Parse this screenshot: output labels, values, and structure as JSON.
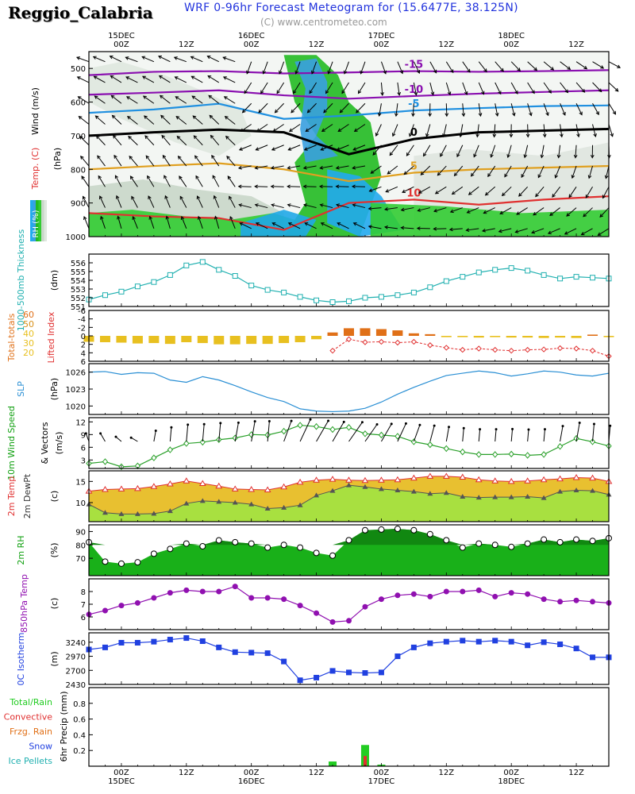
{
  "header": {
    "station": "Reggio_Calabria",
    "title": "WRF 0-96hr Forecast Meteogram for (15.6477E, 38.125N)",
    "credit": "(C) www.centrometeo.com"
  },
  "time_axis": {
    "top_labels": [
      {
        "t": 0,
        "lines": [
          "15DEC",
          "00Z"
        ]
      },
      {
        "t": 12,
        "lines": [
          "12Z"
        ]
      },
      {
        "t": 24,
        "lines": [
          "16DEC",
          "00Z"
        ]
      },
      {
        "t": 36,
        "lines": [
          "12Z"
        ]
      },
      {
        "t": 48,
        "lines": [
          "17DEC",
          "00Z"
        ]
      },
      {
        "t": 60,
        "lines": [
          "12Z"
        ]
      },
      {
        "t": 72,
        "lines": [
          "18DEC",
          "00Z"
        ]
      },
      {
        "t": 84,
        "lines": [
          "12Z"
        ]
      }
    ],
    "bottom_labels": [
      {
        "t": 0,
        "lines": [
          "00Z",
          "15DEC"
        ]
      },
      {
        "t": 12,
        "lines": [
          "12Z"
        ]
      },
      {
        "t": 24,
        "lines": [
          "00Z",
          "16DEC"
        ]
      },
      {
        "t": 36,
        "lines": [
          "12Z"
        ]
      },
      {
        "t": 48,
        "lines": [
          "00Z",
          "17DEC"
        ]
      },
      {
        "t": 60,
        "lines": [
          "12Z"
        ]
      },
      {
        "t": 72,
        "lines": [
          "00Z",
          "18DEC"
        ]
      },
      {
        "t": 84,
        "lines": [
          "12Z"
        ]
      }
    ]
  },
  "colors": {
    "cyan": "#20b0b0",
    "blue_line": "#2a8fd4",
    "gold": "#e8c020",
    "orange": "#e07018",
    "red": "#e03030",
    "green_dark": "#10a010",
    "green": "#22cc22",
    "purple": "#9010b0",
    "blue_sq": "#2040e0",
    "magenta": "#8010a0"
  },
  "chart_data": [
    {
      "id": "upper",
      "type": "heatmap",
      "labels": {
        "wind": "Wind (m/s)",
        "press": "(hPa)",
        "temp": "Temp. (C)",
        "rh": "RH (%)"
      },
      "ylim": [
        1000,
        450
      ],
      "yticks": [
        500,
        600,
        700,
        800,
        900,
        1000
      ],
      "isotherms": [
        {
          "label": "-15",
          "color": "#8a10b0",
          "t": [
            0,
            12,
            24,
            36,
            48,
            60,
            72,
            84,
            96
          ],
          "p": [
            520,
            510,
            508,
            515,
            512,
            508,
            510,
            508,
            505
          ]
        },
        {
          "label": "-10",
          "color": "#8a10b0",
          "t": [
            0,
            12,
            24,
            36,
            48,
            60,
            72,
            84,
            96
          ],
          "p": [
            578,
            572,
            565,
            580,
            590,
            582,
            575,
            570,
            565
          ]
        },
        {
          "label": "-5",
          "color": "#2090e0",
          "t": [
            0,
            12,
            24,
            36,
            48,
            60,
            72,
            84,
            96
          ],
          "p": [
            632,
            622,
            605,
            650,
            640,
            625,
            618,
            612,
            610
          ]
        },
        {
          "label": "0",
          "color": "#000000",
          "t": [
            0,
            12,
            24,
            36,
            48,
            60,
            72,
            84,
            96
          ],
          "p": [
            700,
            690,
            682,
            690,
            755,
            710,
            690,
            685,
            680
          ]
        },
        {
          "label": "5",
          "color": "#e0a020",
          "t": [
            0,
            12,
            24,
            36,
            48,
            60,
            72,
            84,
            96
          ],
          "p": [
            800,
            790,
            782,
            800,
            835,
            810,
            800,
            795,
            790
          ]
        },
        {
          "label": "10",
          "color": "#e03030",
          "t": [
            0,
            12,
            24,
            36,
            48,
            60,
            72,
            84,
            96
          ],
          "p": [
            930,
            940,
            945,
            980,
            900,
            890,
            905,
            890,
            880
          ]
        }
      ]
    },
    {
      "id": "thickness",
      "type": "line",
      "ylabel": "1000-500mb Thickness",
      "unit": "(dm)",
      "ylim": [
        551,
        557
      ],
      "yticks": [
        551,
        552,
        553,
        554,
        555,
        556
      ],
      "x": [
        0,
        3,
        6,
        9,
        12,
        15,
        18,
        21,
        24,
        27,
        30,
        33,
        36,
        39,
        42,
        45,
        48,
        51,
        54,
        57,
        60,
        63,
        66,
        69,
        72,
        75,
        78,
        81,
        84,
        87,
        90,
        93,
        96
      ],
      "values": [
        551.8,
        552.3,
        552.7,
        553.3,
        553.8,
        554.6,
        555.7,
        556.1,
        555.2,
        554.5,
        553.4,
        552.9,
        552.6,
        552.1,
        551.7,
        551.5,
        551.6,
        552.0,
        552.1,
        552.3,
        552.6,
        553.2,
        553.9,
        554.4,
        554.9,
        555.2,
        555.4,
        555.1,
        554.6,
        554.2,
        554.4,
        554.3,
        554.2
      ],
      "color": "#20b0b0"
    },
    {
      "id": "stability",
      "type": "bar",
      "ylabel": "Lifted Index",
      "legend": [
        "Total-totals",
        "60",
        "50",
        "40",
        "30",
        "20"
      ],
      "legend_colors": [
        "#e07018",
        "#e07018",
        "#d89018",
        "#e8c020",
        "#e8c020",
        "#e8c020"
      ],
      "ylim": [
        -6,
        6
      ],
      "yticks": [
        -6,
        -4,
        -2,
        0,
        2,
        4,
        6
      ],
      "x": [
        0,
        3,
        6,
        9,
        12,
        15,
        18,
        21,
        24,
        27,
        30,
        33,
        36,
        39,
        42,
        45,
        48,
        51,
        54,
        57,
        60,
        63,
        66,
        69,
        72,
        75,
        78,
        81,
        84,
        87,
        90,
        93,
        96
      ],
      "lifted_index": [
        1.4,
        1.5,
        1.6,
        1.8,
        1.7,
        1.9,
        1.5,
        1.7,
        2.0,
        2.0,
        1.9,
        1.9,
        1.7,
        1.5,
        0.8,
        -0.8,
        -1.8,
        -1.8,
        -1.6,
        -1.3,
        -0.6,
        -0.4,
        0.3,
        0.3,
        0.4,
        0.3,
        0.4,
        0.4,
        0.5,
        0.4,
        0.5,
        -0.3,
        0.3
      ],
      "li_line": [
        null,
        null,
        null,
        null,
        null,
        null,
        null,
        null,
        null,
        null,
        null,
        null,
        null,
        null,
        null,
        3.5,
        0.8,
        1.5,
        1.4,
        1.6,
        1.4,
        2.2,
        2.8,
        3.3,
        3.0,
        3.3,
        3.5,
        3.3,
        3.2,
        2.9,
        3.0,
        3.5,
        4.8
      ],
      "colors": {
        "bar_pos": "#e8c020",
        "bar_neg": "#e07018",
        "line": "#e03030"
      }
    },
    {
      "id": "slp",
      "type": "line",
      "ylabel": "SLP",
      "unit": "(hPa)",
      "ylim": [
        1018.5,
        1027.5
      ],
      "yticks": [
        1020,
        1023,
        1026
      ],
      "x": [
        0,
        3,
        6,
        9,
        12,
        15,
        18,
        21,
        24,
        27,
        30,
        33,
        36,
        39,
        42,
        45,
        48,
        51,
        54,
        57,
        60,
        63,
        66,
        69,
        72,
        75,
        78,
        81,
        84,
        87,
        90,
        93,
        96
      ],
      "values": [
        1026.0,
        1026.1,
        1025.6,
        1025.9,
        1025.8,
        1024.6,
        1024.2,
        1025.2,
        1024.6,
        1023.6,
        1022.5,
        1021.5,
        1020.8,
        1019.5,
        1019.1,
        1019.0,
        1019.1,
        1019.6,
        1020.7,
        1022.1,
        1023.3,
        1024.4,
        1025.4,
        1025.8,
        1026.2,
        1025.9,
        1025.3,
        1025.7,
        1026.2,
        1026.0,
        1025.5,
        1025.3,
        1025.8
      ],
      "color": "#2a8fd4"
    },
    {
      "id": "wind10",
      "type": "line",
      "ylabel": "10m Wind Speed",
      "ylabel2": "& Vectors",
      "unit": "(m/s)",
      "ylim": [
        1,
        13
      ],
      "yticks": [
        3,
        6,
        9,
        12
      ],
      "x": [
        0,
        3,
        6,
        9,
        12,
        15,
        18,
        21,
        24,
        27,
        30,
        33,
        36,
        39,
        42,
        45,
        48,
        51,
        54,
        57,
        60,
        63,
        66,
        69,
        72,
        75,
        78,
        81,
        84,
        87,
        90,
        93,
        96
      ],
      "values": [
        2.2,
        2.6,
        1.4,
        1.6,
        3.5,
        5.4,
        6.9,
        7.2,
        7.8,
        8.2,
        9.0,
        8.9,
        9.8,
        11.2,
        10.9,
        10.2,
        10.7,
        9.2,
        8.9,
        8.6,
        7.3,
        6.6,
        5.7,
        4.9,
        4.3,
        4.3,
        4.4,
        4.1,
        4.3,
        6.2,
        8.1,
        7.3,
        6.3
      ],
      "dirs": [
        200,
        210,
        230,
        240,
        170,
        175,
        175,
        175,
        175,
        170,
        170,
        175,
        160,
        155,
        150,
        150,
        145,
        145,
        150,
        155,
        160,
        165,
        170,
        175,
        175,
        175,
        175,
        175,
        175,
        170,
        170,
        175,
        175
      ],
      "color": "#2aa02a"
    },
    {
      "id": "temp2m",
      "type": "area",
      "ylabel": "2m Temp",
      "ylabel2": "2m DewPt",
      "unit": "(c)",
      "ylim": [
        5.5,
        17.5
      ],
      "yticks": [
        10,
        15
      ],
      "x": [
        0,
        3,
        6,
        9,
        12,
        15,
        18,
        21,
        24,
        27,
        30,
        33,
        36,
        39,
        42,
        45,
        48,
        51,
        54,
        57,
        60,
        63,
        66,
        69,
        72,
        75,
        78,
        81,
        84,
        87,
        90,
        93,
        96
      ],
      "series": [
        {
          "name": "2m Temp",
          "values": [
            12.7,
            13.1,
            13.2,
            13.3,
            13.8,
            14.4,
            15.1,
            14.5,
            13.9,
            13.2,
            13.1,
            13.0,
            13.7,
            14.8,
            15.3,
            15.5,
            15.3,
            15.2,
            15.3,
            15.4,
            15.8,
            16.2,
            16.2,
            16.0,
            15.4,
            15.1,
            15.0,
            15.1,
            15.4,
            15.6,
            15.9,
            15.8,
            15.0
          ],
          "color": "#e03030"
        },
        {
          "name": "2m DewPt",
          "values": [
            9.6,
            7.6,
            7.3,
            7.3,
            7.4,
            8.0,
            9.8,
            10.4,
            10.2,
            10.0,
            9.6,
            8.6,
            8.8,
            9.4,
            11.7,
            12.8,
            14.1,
            13.7,
            13.2,
            12.9,
            12.6,
            12.1,
            12.3,
            11.4,
            11.2,
            11.3,
            11.3,
            11.4,
            11.1,
            12.6,
            12.9,
            12.8,
            11.9
          ],
          "color": "#555555"
        }
      ]
    },
    {
      "id": "rh2m",
      "type": "area",
      "ylabel": "2m RH",
      "unit": "(%)",
      "ylim": [
        57,
        95
      ],
      "yticks": [
        70,
        80,
        90
      ],
      "x": [
        0,
        3,
        6,
        9,
        12,
        15,
        18,
        21,
        24,
        27,
        30,
        33,
        36,
        39,
        42,
        45,
        48,
        51,
        54,
        57,
        60,
        63,
        66,
        69,
        72,
        75,
        78,
        81,
        84,
        87,
        90,
        93,
        96
      ],
      "values": [
        82.0,
        67.5,
        66.0,
        67.0,
        73.4,
        77.0,
        81.0,
        79.0,
        83.4,
        82.0,
        81.0,
        78.0,
        80.0,
        78.0,
        74.0,
        72.0,
        83.5,
        91.0,
        91.5,
        92.0,
        91.0,
        88.0,
        83.5,
        78.0,
        81.0,
        80.0,
        78.5,
        81.0,
        84.0,
        82.0,
        84.0,
        83.0,
        85.0
      ],
      "color": "#10a010"
    },
    {
      "id": "t850",
      "type": "line",
      "ylabel": "850hPa Temp",
      "unit": "(c)",
      "ylim": [
        5,
        9
      ],
      "yticks": [
        6,
        7,
        8
      ],
      "x": [
        0,
        3,
        6,
        9,
        12,
        15,
        18,
        21,
        24,
        27,
        30,
        33,
        36,
        39,
        42,
        45,
        48,
        51,
        54,
        57,
        60,
        63,
        66,
        69,
        72,
        75,
        78,
        81,
        84,
        87,
        90,
        93,
        96
      ],
      "values": [
        6.2,
        6.5,
        6.9,
        7.1,
        7.5,
        7.9,
        8.1,
        8.0,
        8.0,
        8.4,
        7.5,
        7.5,
        7.4,
        6.9,
        6.3,
        5.6,
        5.7,
        6.8,
        7.4,
        7.7,
        7.8,
        7.6,
        8.0,
        8.0,
        8.1,
        7.6,
        7.9,
        7.8,
        7.4,
        7.2,
        7.3,
        7.2,
        7.1
      ],
      "color": "#9010b0"
    },
    {
      "id": "iso0",
      "type": "line",
      "ylabel": "0C Isotherm",
      "unit": "(m)",
      "ylim": [
        2430,
        3420
      ],
      "yticks": [
        2430,
        2700,
        2970,
        3240
      ],
      "x": [
        0,
        3,
        6,
        9,
        12,
        15,
        18,
        21,
        24,
        27,
        30,
        33,
        36,
        39,
        42,
        45,
        48,
        51,
        54,
        57,
        60,
        63,
        66,
        69,
        72,
        75,
        78,
        81,
        84,
        87,
        90,
        93,
        96
      ],
      "values": [
        3100,
        3140,
        3230,
        3230,
        3250,
        3290,
        3320,
        3260,
        3140,
        3050,
        3040,
        3030,
        2870,
        2510,
        2560,
        2690,
        2660,
        2650,
        2660,
        2970,
        3140,
        3220,
        3250,
        3270,
        3250,
        3270,
        3250,
        3180,
        3240,
        3200,
        3120,
        2950,
        2950
      ],
      "color": "#2040e0"
    },
    {
      "id": "precip",
      "type": "bar",
      "ylabel": "6hr Precip (mm)",
      "legend": [
        "Total/Rain",
        "Convective",
        "Frzg. Rain",
        "Snow",
        "Ice Pellets"
      ],
      "legend_colors": [
        "#22cc22",
        "#e03030",
        "#e07018",
        "#2040e0",
        "#20b0b0"
      ],
      "ylim": [
        0,
        1.0
      ],
      "yticks": [
        0.2,
        0.4,
        0.6,
        0.8
      ],
      "bars": [
        {
          "t": 45,
          "total": 0.06,
          "conv": 0.0
        },
        {
          "t": 51,
          "total": 0.27,
          "conv": 0.13
        },
        {
          "t": 54,
          "total": 0.02,
          "conv": 0.0
        }
      ]
    }
  ]
}
